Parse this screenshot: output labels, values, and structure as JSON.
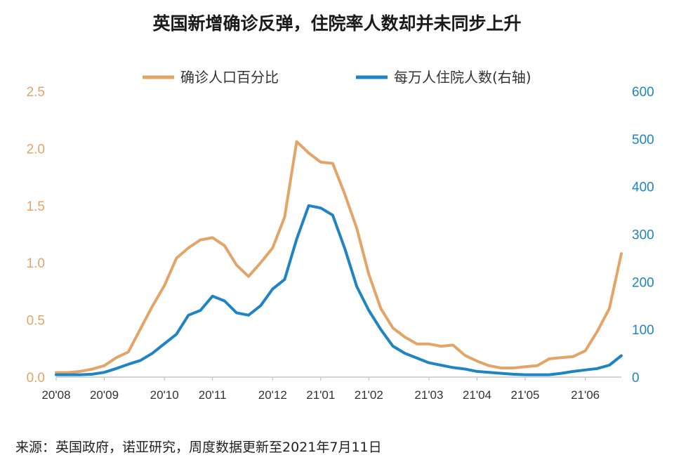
{
  "title": "英国新增确诊反弹，住院率人数却并未同步上升",
  "source": "来源：英国政府，诺亚研究，周度数据更新至2021年7月11日",
  "colors": {
    "left_series": "#e3a468",
    "right_series": "#1f84c3",
    "left_axis": "#e3a468",
    "right_axis": "#1f84c3",
    "baseline": "#bbbbbb"
  },
  "chart_data": {
    "type": "line",
    "title": "英国新增确诊反弹，住院率人数却并未同步上升",
    "legend_position": "top-center",
    "grid": false,
    "x_tick_labels": [
      "20'08",
      "20'09",
      "20'10",
      "20'11",
      "20'12",
      "21'01",
      "21'02",
      "21'03",
      "21'04",
      "21'05",
      "21'06"
    ],
    "x_tick_index": [
      0,
      4,
      9,
      13,
      18,
      22,
      26,
      31,
      35,
      39,
      44
    ],
    "y_left": {
      "ylim": [
        0,
        2.5
      ],
      "ticks": [
        "0.0",
        "0.5",
        "1.0",
        "1.5",
        "2.0",
        "2.5"
      ]
    },
    "y_right": {
      "ylim": [
        0,
        600
      ],
      "ticks": [
        "0",
        "100",
        "200",
        "300",
        "400",
        "500",
        "600"
      ]
    },
    "series": [
      {
        "name": "确诊人口百分比",
        "axis": "left",
        "values": [
          0.04,
          0.04,
          0.05,
          0.07,
          0.1,
          0.17,
          0.22,
          0.42,
          0.62,
          0.8,
          1.04,
          1.13,
          1.2,
          1.22,
          1.15,
          0.98,
          0.88,
          1.0,
          1.13,
          1.4,
          2.06,
          1.96,
          1.88,
          1.87,
          1.6,
          1.3,
          0.9,
          0.6,
          0.43,
          0.35,
          0.29,
          0.29,
          0.27,
          0.28,
          0.19,
          0.14,
          0.1,
          0.08,
          0.08,
          0.09,
          0.1,
          0.16,
          0.17,
          0.18,
          0.23,
          0.4,
          0.6,
          1.08
        ]
      },
      {
        "name": "每万人住院人数(右轴)",
        "axis": "right",
        "values": [
          5,
          5,
          5,
          6,
          10,
          18,
          27,
          35,
          50,
          70,
          90,
          130,
          140,
          170,
          160,
          135,
          130,
          150,
          185,
          205,
          290,
          360,
          355,
          340,
          270,
          190,
          140,
          100,
          65,
          50,
          40,
          30,
          25,
          20,
          17,
          12,
          10,
          8,
          6,
          5,
          5,
          5,
          8,
          12,
          15,
          18,
          25,
          45
        ]
      }
    ]
  }
}
